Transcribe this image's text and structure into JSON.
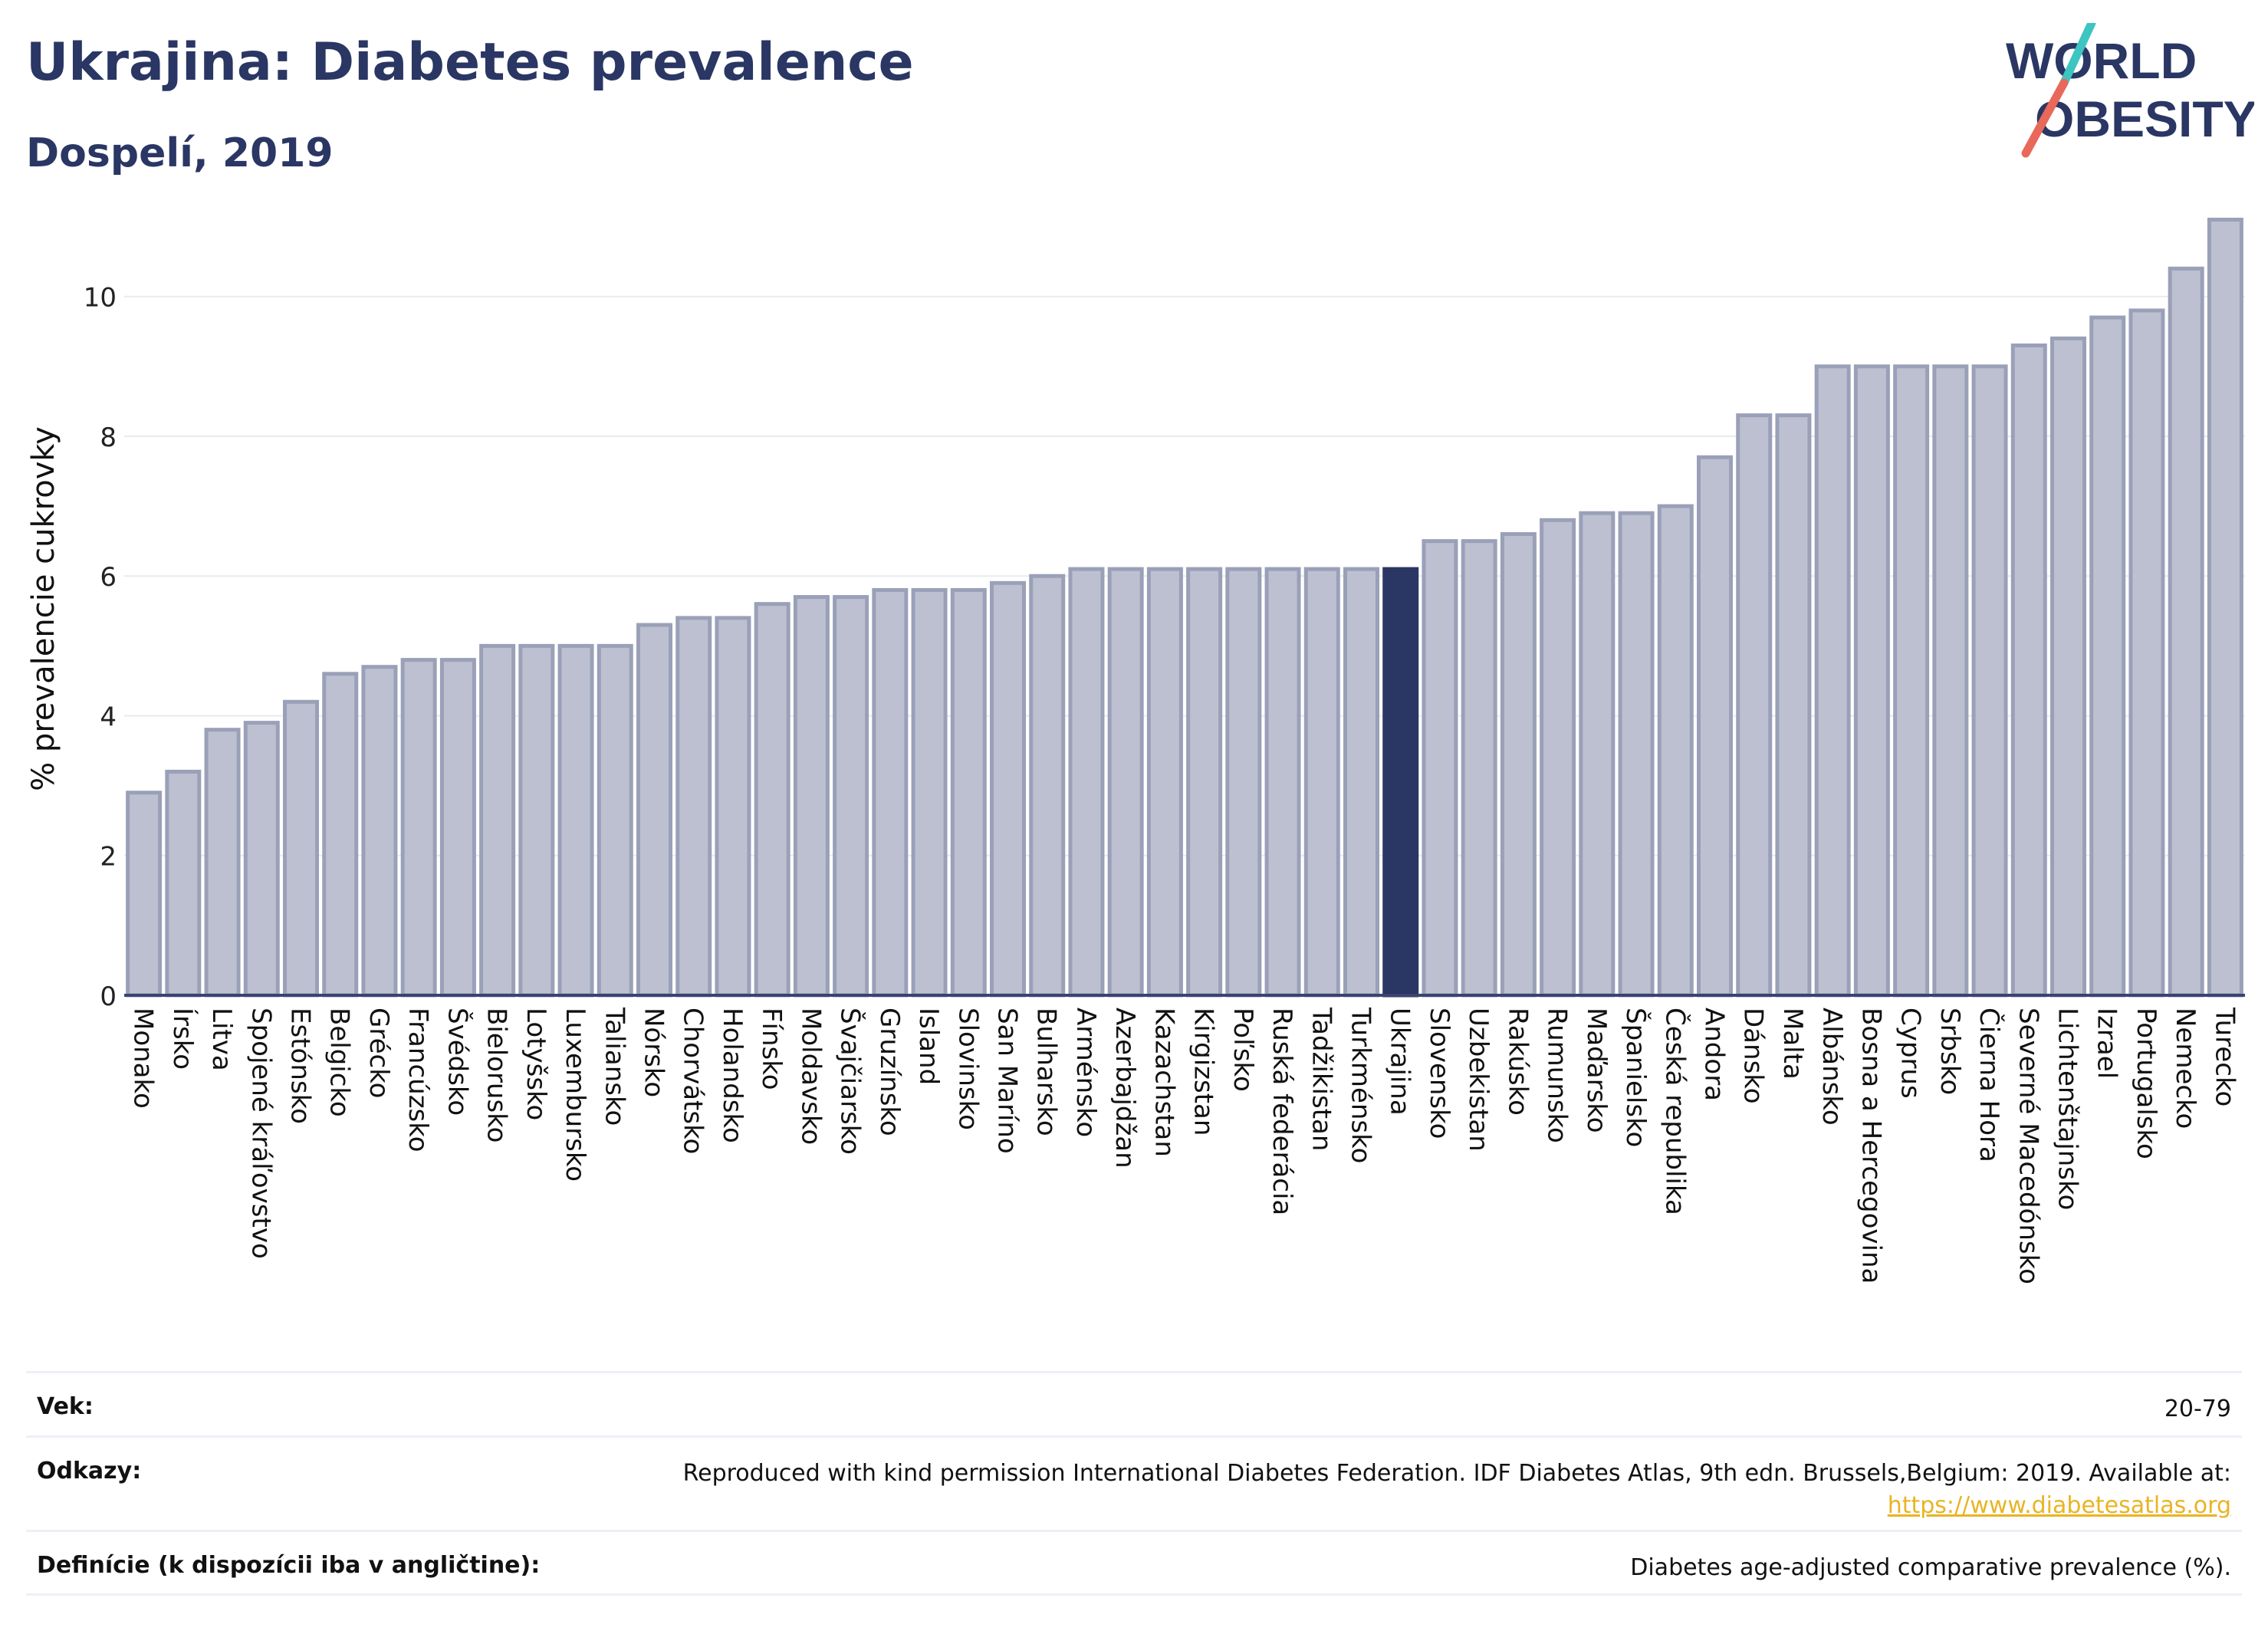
{
  "header": {
    "title": "Ukrajina: Diabetes prevalence",
    "subtitle": "Dospelí, 2019"
  },
  "logo": {
    "line1": "WORLD",
    "line2": "OBESITY",
    "accent_colors": [
      "#3cc5c1",
      "#e8685a"
    ]
  },
  "colors": {
    "bar": "#bcc0d0",
    "bar_stroke": "#9aa0b8",
    "highlight": "#2a3663",
    "grid": "#e8eaf0",
    "axis": "#3a4472"
  },
  "chart_data": {
    "type": "bar",
    "ylabel": "% prevalencie cukrovky",
    "ylim": [
      0,
      11.5
    ],
    "yticks": [
      0,
      2,
      4,
      6,
      8,
      10
    ],
    "grid": true,
    "highlight_category": "Ukrajina",
    "categories": [
      "Monako",
      "Írsko",
      "Litva",
      "Spojené kráľovstvo",
      "Estónsko",
      "Belgicko",
      "Grécko",
      "Francúzsko",
      "Švédsko",
      "Bielorusko",
      "Lotyšsko",
      "Luxembursko",
      "Taliansko",
      "Nórsko",
      "Chorvátsko",
      "Holandsko",
      "Fínsko",
      "Moldavsko",
      "Švajčiarsko",
      "Gruzínsko",
      "Island",
      "Slovinsko",
      "San Maríno",
      "Bulharsko",
      "Arménsko",
      "Azerbajdžan",
      "Kazachstan",
      "Kirgizstan",
      "Poľsko",
      "Ruská federácia",
      "Tadžikistan",
      "Turkménsko",
      "Ukrajina",
      "Slovensko",
      "Uzbekistan",
      "Rakúsko",
      "Rumunsko",
      "Maďarsko",
      "Španielsko",
      "Česká republika",
      "Andora",
      "Dánsko",
      "Malta",
      "Albánsko",
      "Bosna a Hercegovina",
      "Cyprus",
      "Srbsko",
      "Čierna Hora",
      "Severné Macedónsko",
      "Lichtenštajnsko",
      "Izrael",
      "Portugalsko",
      "Nemecko",
      "Turecko"
    ],
    "values": [
      2.9,
      3.2,
      3.8,
      3.9,
      4.2,
      4.6,
      4.7,
      4.8,
      4.8,
      5.0,
      5.0,
      5.0,
      5.0,
      5.3,
      5.4,
      5.4,
      5.6,
      5.7,
      5.7,
      5.8,
      5.8,
      5.8,
      5.9,
      6.0,
      6.1,
      6.1,
      6.1,
      6.1,
      6.1,
      6.1,
      6.1,
      6.1,
      6.1,
      6.5,
      6.5,
      6.6,
      6.8,
      6.9,
      6.9,
      7.0,
      7.7,
      8.3,
      8.3,
      9.0,
      9.0,
      9.0,
      9.0,
      9.0,
      9.3,
      9.4,
      9.7,
      9.8,
      10.4,
      11.1
    ]
  },
  "info": {
    "age_label": "Vek:",
    "age_value": "20-79",
    "refs_label": "Odkazy:",
    "refs_text": "Reproduced with kind permission International Diabetes Federation. IDF Diabetes Atlas, 9th edn. Brussels,Belgium: 2019. Available at:",
    "refs_link": "https://www.diabetesatlas.org",
    "def_label": "Definície (k dispozícii iba v angličtine):",
    "def_value": "Diabetes age-adjusted comparative prevalence (%)."
  }
}
